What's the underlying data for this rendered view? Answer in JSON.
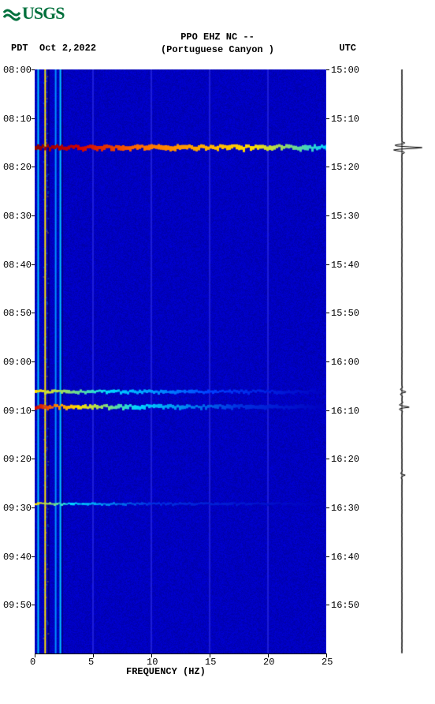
{
  "logo_text": "USGS",
  "header": {
    "line1": "PPO EHZ NC --",
    "line2": "(Portuguese Canyon )",
    "left_zone": "PDT",
    "date": "Oct 2,2022",
    "right_zone": "UTC"
  },
  "spectrogram": {
    "type": "heatmap",
    "background_color": "#0000d0",
    "low_color": "#00007a",
    "mid_color": "#009fff",
    "high_color": "#fffc00",
    "hot_color": "#d00000",
    "vertical_lines": [
      {
        "freq": 0.3,
        "color": "#00c8ff",
        "width": 2
      },
      {
        "freq": 0.9,
        "color": "#ffe000",
        "width": 2
      },
      {
        "freq": 1.2,
        "color": "#000070",
        "width": 2
      },
      {
        "freq": 1.8,
        "color": "#0090ff",
        "width": 2
      },
      {
        "freq": 2.2,
        "color": "#00c8ff",
        "width": 2
      },
      {
        "freq": 2.4,
        "color": "#000070",
        "width": 1
      }
    ],
    "grid_lines_x": [
      5,
      10,
      15,
      20,
      25
    ],
    "grid_color": "#3a3af0",
    "events": [
      {
        "t": 0.134,
        "intensity": 1.0,
        "thickness": 6
      },
      {
        "t": 0.552,
        "intensity": 0.6,
        "thickness": 4
      },
      {
        "t": 0.578,
        "intensity": 0.8,
        "thickness": 5
      },
      {
        "t": 0.744,
        "intensity": 0.3,
        "thickness": 3
      }
    ],
    "xlim": [
      0,
      25
    ],
    "xlabel": "FREQUENCY (HZ)",
    "xticks": [
      0,
      5,
      10,
      15,
      20,
      25
    ],
    "left_time_ticks": [
      "08:00",
      "08:10",
      "08:20",
      "08:30",
      "08:40",
      "08:50",
      "09:00",
      "09:10",
      "09:20",
      "09:30",
      "09:40",
      "09:50"
    ],
    "right_time_ticks": [
      "15:00",
      "15:10",
      "15:20",
      "15:30",
      "15:40",
      "15:50",
      "16:00",
      "16:10",
      "16:20",
      "16:30",
      "16:40",
      "16:50"
    ],
    "label_fontsize": 12
  },
  "seismogram": {
    "baseline_x": 510,
    "color": "#000000",
    "events": [
      {
        "t": 0.134,
        "amplitude": 30
      },
      {
        "t": 0.552,
        "amplitude": 6
      },
      {
        "t": 0.578,
        "amplitude": 10
      },
      {
        "t": 0.695,
        "amplitude": 4
      }
    ]
  }
}
